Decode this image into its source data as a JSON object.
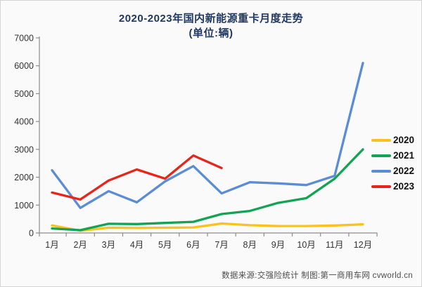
{
  "title": {
    "line1": "2020-2023年国内新能源重卡月度走势",
    "line2": "(单位:辆)"
  },
  "footer": {
    "text": "数据来源:交强险统计 制图:第一商用车网 cvworld.cn"
  },
  "colors": {
    "title": "#1F3864",
    "axis": "#8C8C8C",
    "tick_label": "#333333",
    "background": "#FAFAFA"
  },
  "chart_data": {
    "type": "line",
    "title": "2020-2023年国内新能源重卡月度走势",
    "subtitle": "(单位:辆)",
    "unit": "辆",
    "categories": [
      "1月",
      "2月",
      "3月",
      "4月",
      "5月",
      "6月",
      "7月",
      "8月",
      "9月",
      "10月",
      "11月",
      "12月"
    ],
    "series": [
      {
        "name": "2020",
        "color": "#FCC21B",
        "values": [
          270,
          80,
          190,
          180,
          190,
          200,
          340,
          280,
          250,
          250,
          270,
          310
        ]
      },
      {
        "name": "2021",
        "color": "#12A452",
        "values": [
          160,
          100,
          330,
          320,
          360,
          400,
          680,
          790,
          1080,
          1250,
          1950,
          3000
        ]
      },
      {
        "name": "2022",
        "color": "#5B8CD6",
        "values": [
          2250,
          900,
          1500,
          1100,
          1850,
          2400,
          1420,
          1820,
          1780,
          1720,
          2050,
          6100
        ]
      },
      {
        "name": "2023",
        "color": "#E8251A",
        "values": [
          1450,
          1200,
          1880,
          2280,
          1950,
          2780,
          2330,
          null,
          null,
          null,
          null,
          null
        ]
      }
    ],
    "ylim": [
      0,
      7000
    ],
    "ytick_labels": [
      "0",
      "1000",
      "2000",
      "3000",
      "4000",
      "5000",
      "6000",
      "7000"
    ],
    "grid": false,
    "legend_position": "right"
  }
}
